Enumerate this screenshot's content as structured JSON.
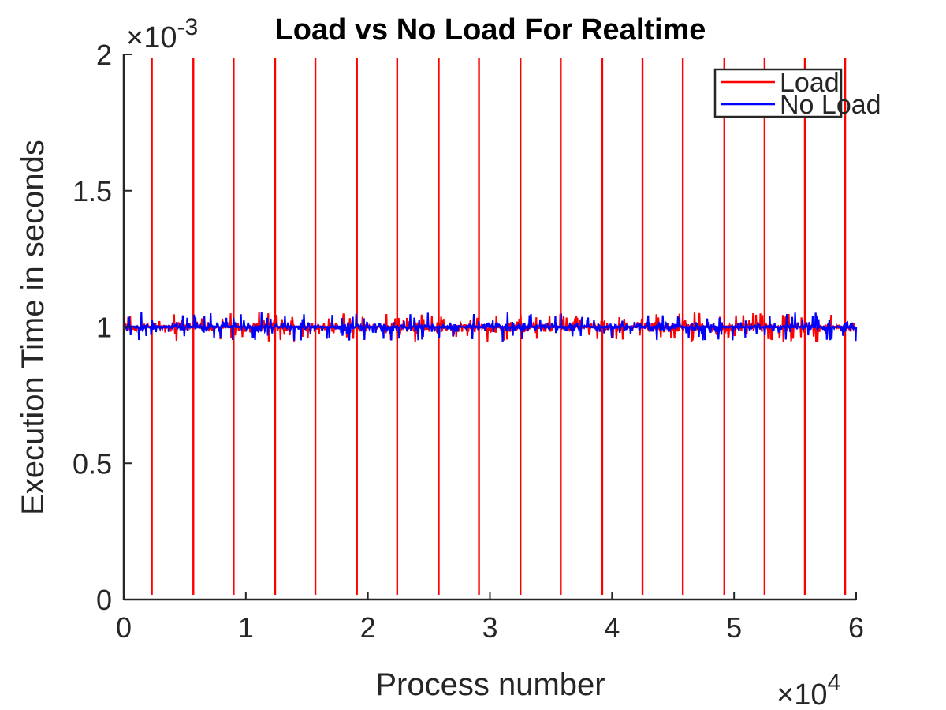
{
  "chart_data": {
    "type": "line",
    "title": "Load vs No Load For Realtime",
    "xlabel": "Process number",
    "ylabel": "Execution Time in seconds",
    "x_multiplier": "×10",
    "x_multiplier_exp": "4",
    "y_multiplier": "×10",
    "y_multiplier_exp": "-3",
    "xlim": [
      0,
      60000
    ],
    "ylim": [
      0,
      0.002
    ],
    "xticks": [
      0,
      10000,
      20000,
      30000,
      40000,
      50000,
      60000
    ],
    "xtick_labels": [
      "0",
      "1",
      "2",
      "3",
      "4",
      "5",
      "6"
    ],
    "yticks": [
      0,
      0.0005,
      0.001,
      0.0015,
      0.002
    ],
    "ytick_labels": [
      "0",
      "0.5",
      "1",
      "1.5",
      "2"
    ],
    "grid": false,
    "legend_position": "top-right",
    "series": [
      {
        "name": "Load",
        "color": "#ff0000",
        "baseline": 0.001,
        "noise_amplitude": 3e-05,
        "spike_x": [
          2300,
          5700,
          9000,
          12400,
          15700,
          19100,
          22400,
          25800,
          29100,
          32500,
          35800,
          39200,
          42500,
          45800,
          49200,
          52500,
          55800,
          59100
        ],
        "spike_range": [
          0,
          0.002
        ]
      },
      {
        "name": "No Load",
        "color": "#0000ff",
        "baseline": 0.001,
        "noise_amplitude": 3e-05,
        "spike_x": [],
        "spike_range": null
      }
    ]
  }
}
